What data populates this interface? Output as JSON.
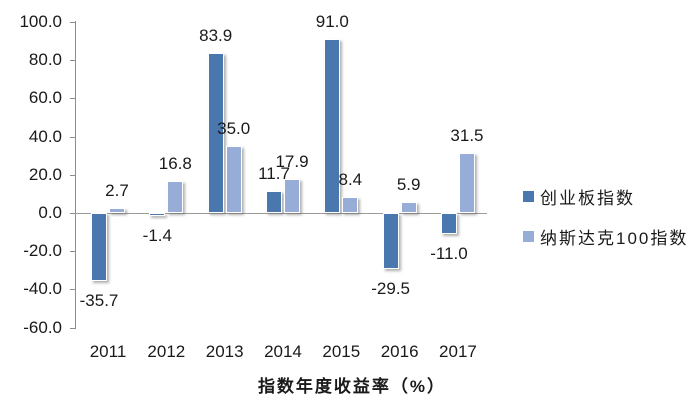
{
  "chart_data": {
    "type": "bar",
    "title": "",
    "xlabel": "指数年度收益率（%）",
    "ylabel": "",
    "categories": [
      "2011",
      "2012",
      "2013",
      "2014",
      "2015",
      "2016",
      "2017"
    ],
    "series": [
      {
        "name": "创业板指数",
        "color": "#4a77ad",
        "values": [
          -35.7,
          -1.4,
          83.9,
          11.7,
          91.0,
          -29.5,
          -11.0
        ]
      },
      {
        "name": "纳斯达克100指数",
        "color": "#97add8",
        "values": [
          2.7,
          16.8,
          35.0,
          17.9,
          8.4,
          5.9,
          31.5
        ]
      }
    ],
    "ylim": [
      -60,
      100
    ],
    "ytick_step": 20,
    "ytick_labels": [
      "100.0",
      "80.0",
      "60.0",
      "40.0",
      "20.0",
      "0.0",
      "-20.0",
      "-40.0",
      "-60.0"
    ],
    "grid": false,
    "legend_position": "right",
    "data_labels": true,
    "label_decimals": 1
  }
}
